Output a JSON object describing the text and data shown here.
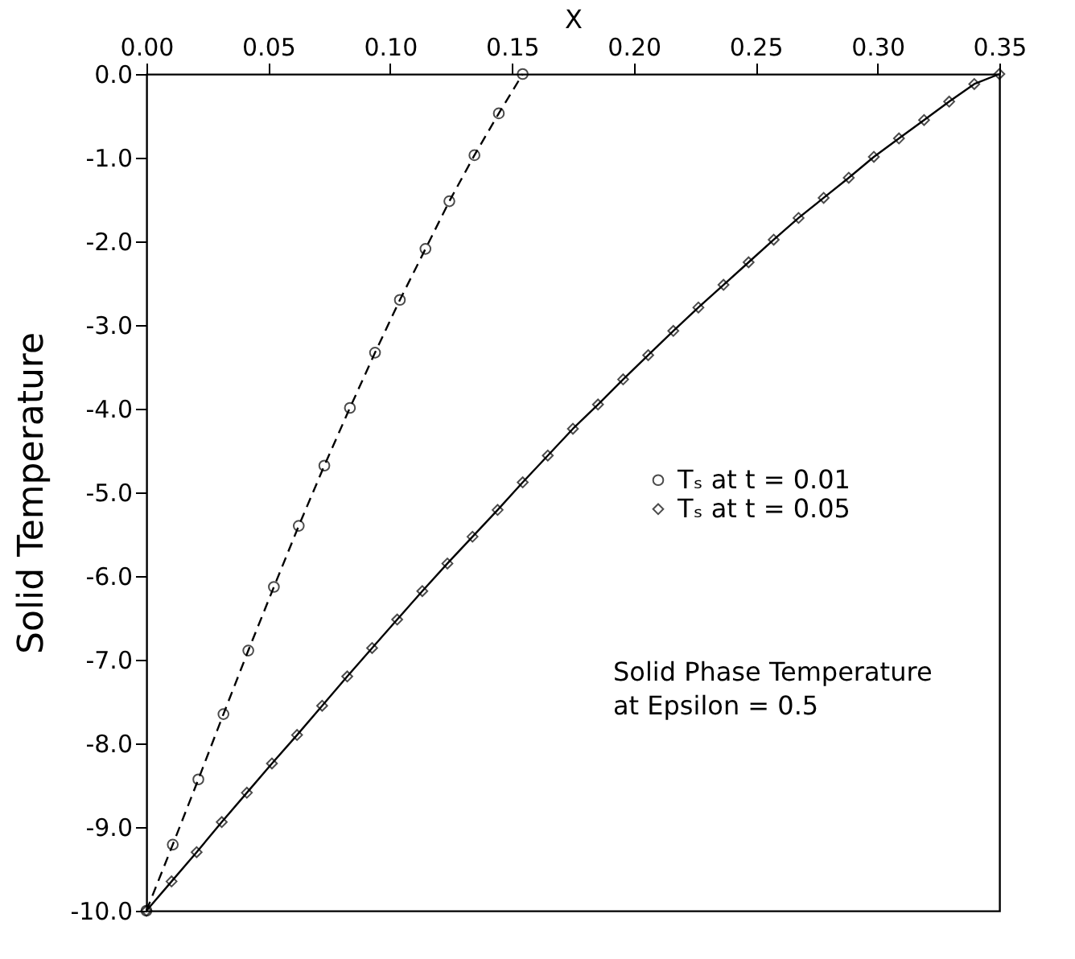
{
  "chart_data": {
    "type": "line",
    "xlabel": "X",
    "ylabel": "Solid Temperature",
    "xlim": [
      0,
      0.35
    ],
    "ylim": [
      -10,
      0
    ],
    "xticks": [
      {
        "value": 0,
        "label": "0.00"
      },
      0.05,
      {
        "value": 0.1,
        "label": "0.10"
      },
      0.15,
      {
        "value": 0.2,
        "label": "0.20"
      },
      0.25,
      {
        "value": 0.3,
        "label": "0.30"
      },
      0.35
    ],
    "yticks": [
      {
        "value": -10,
        "label": "-10.0"
      },
      {
        "value": -9,
        "label": "-9.0"
      },
      {
        "value": -8,
        "label": "-8.0"
      },
      {
        "value": -7,
        "label": "-7.0"
      },
      {
        "value": -6,
        "label": "-6.0"
      },
      {
        "value": -5,
        "label": "-5.0"
      },
      {
        "value": -4,
        "label": "-4.0"
      },
      {
        "value": -3,
        "label": "-3.0"
      },
      {
        "value": -2,
        "label": "-2.0"
      },
      {
        "value": -1,
        "label": "-1.0"
      },
      {
        "value": 0,
        "label": "0.0"
      }
    ],
    "grid": false,
    "legend": "right",
    "annotations": [
      "Solid Phase Temperature\n   at Epsilon = 0.5"
    ],
    "series": [
      {
        "name": "Tₛ at t = 0.01",
        "color": "#000000",
        "line_style": "dashed",
        "marker": "circle",
        "x": [
          0,
          0.0108,
          0.0213,
          0.0316,
          0.0418,
          0.0523,
          0.0625,
          0.073,
          0.0835,
          0.0938,
          0.104,
          0.1145,
          0.1243,
          0.1346,
          0.1446,
          0.1544
        ],
        "values": [
          -10,
          -9.21,
          -8.43,
          -7.65,
          -6.89,
          -6.13,
          -5.4,
          -4.68,
          -3.99,
          -3.33,
          -2.7,
          -2.09,
          -1.52,
          -0.97,
          -0.47,
          0
        ]
      },
      {
        "name": "Tₛ at t = 0.05",
        "color": "#000000",
        "line_style": "solid",
        "marker": "diamond",
        "x": [
          0,
          0.0103,
          0.0206,
          0.0309,
          0.0412,
          0.0515,
          0.0618,
          0.0721,
          0.0824,
          0.0926,
          0.1029,
          0.1132,
          0.1235,
          0.1338,
          0.1441,
          0.1544,
          0.1647,
          0.175,
          0.1853,
          0.1956,
          0.2059,
          0.2162,
          0.2265,
          0.2368,
          0.2471,
          0.2574,
          0.2676,
          0.2779,
          0.2882,
          0.2985,
          0.3088,
          0.3191,
          0.3294,
          0.3397,
          0.35
        ],
        "values": [
          -10,
          -9.65,
          -9.3,
          -8.94,
          -8.59,
          -8.24,
          -7.9,
          -7.55,
          -7.2,
          -6.86,
          -6.52,
          -6.18,
          -5.85,
          -5.53,
          -5.21,
          -4.88,
          -4.56,
          -4.24,
          -3.95,
          -3.65,
          -3.36,
          -3.07,
          -2.79,
          -2.52,
          -2.25,
          -1.98,
          -1.72,
          -1.48,
          -1.24,
          -0.99,
          -0.77,
          -0.55,
          -0.33,
          -0.12,
          0
        ]
      }
    ]
  }
}
